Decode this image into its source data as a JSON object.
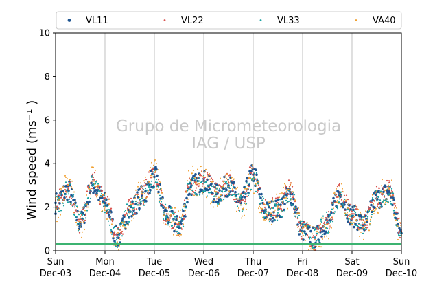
{
  "chart_data": {
    "type": "scatter",
    "title": "",
    "ylabel": "Wind speed (ms⁻¹ )",
    "xlabel": "",
    "xlim": [
      "2023-12-03T00:00",
      "2023-12-10T00:00"
    ],
    "ylim": [
      0,
      10
    ],
    "yticks": [
      0,
      2,
      4,
      6,
      8,
      10
    ],
    "xticks": [
      {
        "day": "Sun",
        "date": "Dec-03"
      },
      {
        "day": "Mon",
        "date": "Dec-04"
      },
      {
        "day": "Tue",
        "date": "Dec-05"
      },
      {
        "day": "Wed",
        "date": "Dec-06"
      },
      {
        "day": "Thu",
        "date": "Dec-07"
      },
      {
        "day": "Fri",
        "date": "Dec-08"
      },
      {
        "day": "Sat",
        "date": "Dec-09"
      },
      {
        "day": "Sun",
        "date": "Dec-10"
      }
    ],
    "grid": "vertical",
    "legend_position": "top",
    "watermark": [
      "Grupo de Micrometeorologia",
      "IAG / USP"
    ],
    "threshold_line": {
      "y": 0.3,
      "color": "#3cb371"
    },
    "x": [
      "2023-12-03T00:00",
      "2023-12-03T06:00",
      "2023-12-03T12:00",
      "2023-12-03T18:00",
      "2023-12-04T00:00",
      "2023-12-04T06:00",
      "2023-12-04T12:00",
      "2023-12-04T18:00",
      "2023-12-05T00:00",
      "2023-12-05T06:00",
      "2023-12-05T12:00",
      "2023-12-05T18:00",
      "2023-12-06T00:00",
      "2023-12-06T06:00",
      "2023-12-06T12:00",
      "2023-12-06T18:00",
      "2023-12-07T00:00",
      "2023-12-07T06:00",
      "2023-12-07T12:00",
      "2023-12-07T18:00",
      "2023-12-08T00:00",
      "2023-12-08T06:00",
      "2023-12-08T12:00",
      "2023-12-08T18:00",
      "2023-12-09T00:00",
      "2023-12-09T06:00",
      "2023-12-09T12:00",
      "2023-12-09T18:00",
      "2023-12-10T00:00"
    ],
    "series": [
      {
        "name": "VL11",
        "color": "#1f5591",
        "values": [
          2.2,
          2.8,
          1.3,
          3.0,
          2.2,
          0.6,
          1.8,
          2.5,
          3.4,
          1.6,
          1.1,
          3.0,
          3.2,
          2.6,
          3.0,
          2.2,
          3.5,
          1.8,
          1.9,
          2.6,
          0.9,
          0.6,
          1.3,
          2.6,
          1.6,
          1.2,
          2.4,
          2.7,
          0.8
        ]
      },
      {
        "name": "VL22",
        "color": "#d9534f",
        "values": [
          2.3,
          2.9,
          1.2,
          3.2,
          2.3,
          0.7,
          1.9,
          2.6,
          3.5,
          1.5,
          1.2,
          3.1,
          3.3,
          2.7,
          3.1,
          2.3,
          3.6,
          1.9,
          2.0,
          2.8,
          1.0,
          0.5,
          1.4,
          2.7,
          1.7,
          1.3,
          2.5,
          2.8,
          0.9
        ]
      },
      {
        "name": "VL33",
        "color": "#17a2a2",
        "values": [
          2.1,
          2.7,
          1.3,
          3.0,
          2.1,
          0.6,
          1.8,
          2.4,
          3.3,
          1.6,
          1.1,
          2.9,
          3.1,
          2.5,
          2.9,
          2.1,
          3.4,
          1.8,
          1.9,
          2.5,
          0.9,
          0.6,
          1.3,
          2.5,
          1.6,
          1.2,
          2.3,
          2.6,
          0.8
        ]
      },
      {
        "name": "VA40",
        "color": "#f0a030",
        "values": [
          2.0,
          3.0,
          1.1,
          3.4,
          2.0,
          0.4,
          1.7,
          2.7,
          3.6,
          1.4,
          1.3,
          3.2,
          3.2,
          2.5,
          3.2,
          2.1,
          3.3,
          1.7,
          2.0,
          2.7,
          0.8,
          0.5,
          1.2,
          2.6,
          1.5,
          1.1,
          2.4,
          2.9,
          0.7
        ]
      }
    ]
  }
}
